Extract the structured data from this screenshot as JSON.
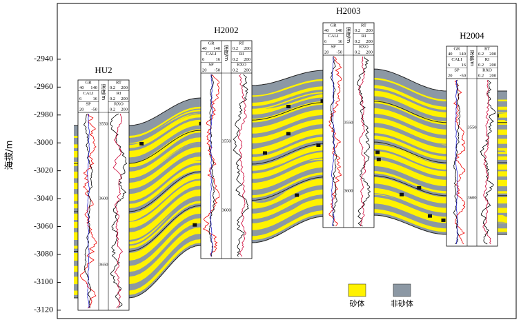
{
  "axis": {
    "label": "海拔/m",
    "range": [
      -3126,
      -2900
    ],
    "ticks": [
      -2940,
      -2960,
      -2980,
      -3000,
      -3020,
      -3040,
      -3060,
      -3080,
      -3100,
      -3120
    ]
  },
  "wells": [
    {
      "name": "HU2",
      "left": [
        [
          "GR",
          "40",
          "140"
        ],
        [
          "CALI",
          "6",
          "16"
        ],
        [
          "SP",
          "20",
          "-50"
        ]
      ],
      "depth": "深度/m",
      "right": [
        [
          "RT",
          "0.2",
          "200"
        ],
        [
          "RI",
          "0.2",
          "200"
        ],
        [
          "RXO",
          "0.2",
          "200"
        ]
      ],
      "marks": [
        3550,
        3600,
        3650
      ]
    },
    {
      "name": "H2002",
      "left": [
        [
          "GR",
          "40",
          "140"
        ],
        [
          "CALI",
          "6",
          "16"
        ],
        [
          "SP",
          "20",
          "-50"
        ]
      ],
      "depth": "深度/m",
      "right": [
        [
          "RT",
          "0.2",
          "200"
        ],
        [
          "RI",
          "0.2",
          "200"
        ],
        [
          "RXO",
          "0.2",
          "200"
        ]
      ],
      "marks": [
        3550,
        3600
      ]
    },
    {
      "name": "H2003",
      "left": [
        [
          "GR",
          "40",
          "140"
        ],
        [
          "CALI",
          "6",
          "16"
        ],
        [
          "SP",
          "20",
          "-50"
        ]
      ],
      "depth": "深度/m",
      "right": [
        [
          "RT",
          "0.2",
          "200"
        ],
        [
          "RI",
          "0.2",
          "200"
        ],
        [
          "RXO",
          "0.2",
          "200"
        ]
      ],
      "marks": [
        3550,
        3600
      ]
    },
    {
      "name": "H2004",
      "left": [
        [
          "GR",
          "40",
          "140"
        ],
        [
          "CALI",
          "6",
          "16"
        ],
        [
          "SP",
          "20",
          "-50"
        ]
      ],
      "depth": "深度/m",
      "right": [
        [
          "RT",
          "0.2",
          "200"
        ],
        [
          "RI",
          "0.2",
          "200"
        ],
        [
          "RXO",
          "0.2",
          "200"
        ]
      ],
      "marks": [
        3550,
        3600
      ]
    }
  ],
  "legend": [
    {
      "label": "砂体",
      "color": "#fff200"
    },
    {
      "label": "非砂体",
      "color": "#8c98a4"
    }
  ]
}
